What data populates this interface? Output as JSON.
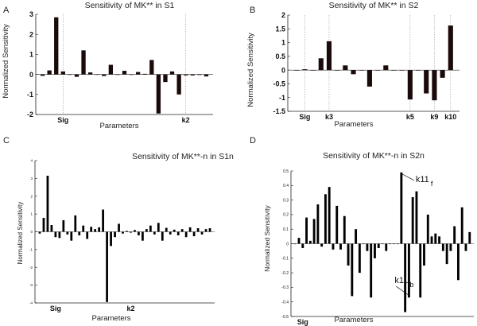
{
  "chart_data": [
    {
      "panel": "A",
      "type": "bar",
      "title": "Sensitivity of MK** in S1",
      "xlabel": "Parameters",
      "ylabel": "Normalized Sensitivity",
      "ylim": [
        -2,
        3
      ],
      "yticks": [
        "-2",
        "-1",
        "0",
        "1",
        "2",
        "3"
      ],
      "param_labels": [
        {
          "index": 3,
          "text": "Sig"
        },
        {
          "index": 21,
          "text": "k2"
        }
      ],
      "values": [
        -0.07,
        0.2,
        2.85,
        0.15,
        0.0,
        -0.12,
        1.2,
        0.1,
        0.0,
        -0.08,
        0.48,
        0.0,
        0.18,
        0.0,
        0.12,
        0.03,
        0.72,
        -1.95,
        -0.38,
        0.15,
        -1.0,
        -0.05,
        -0.05,
        -0.03,
        -0.1
      ],
      "value_count_note": "",
      "grid": false
    },
    {
      "panel": "B",
      "type": "bar",
      "title": "Sensitivity of MK** in S2",
      "xlabel": "Parameters",
      "ylabel": "Normalized Sensitivity",
      "ylim": [
        -1.5,
        2
      ],
      "yticks": [
        "-1.5",
        "-1",
        "-0.5",
        "0",
        "0.5",
        "1",
        "1.5",
        "2"
      ],
      "param_labels": [
        {
          "index": 1,
          "text": "Sig"
        },
        {
          "index": 4,
          "text": "k3"
        },
        {
          "index": 14,
          "text": "k5"
        },
        {
          "index": 17,
          "text": "k9"
        },
        {
          "index": 19,
          "text": "k10"
        }
      ],
      "values": [
        0.0,
        0.03,
        0.0,
        0.43,
        1.05,
        0.0,
        0.17,
        -0.15,
        0.0,
        -0.6,
        0.0,
        0.17,
        0.0,
        0.0,
        -1.07,
        0.0,
        -0.85,
        -1.1,
        -0.28,
        1.62
      ],
      "grid": false
    },
    {
      "panel": "C",
      "type": "bar",
      "title": "Sensitivity of MK**-n in S1n",
      "xlabel": "Parameters",
      "ylabel": "Normalized Sensitivity",
      "ylim": [
        -4,
        4
      ],
      "yticks": [
        "-4",
        "-3",
        "-2",
        "-1",
        "0",
        "1",
        "2",
        "3",
        "4"
      ],
      "param_labels": [
        {
          "index": 4,
          "text": "Sig"
        },
        {
          "index": 23,
          "text": "k2"
        }
      ],
      "values": [
        -0.1,
        0.78,
        3.15,
        0.38,
        -0.3,
        -0.35,
        0.65,
        -0.15,
        -0.5,
        0.92,
        -0.2,
        0.35,
        -0.4,
        0.28,
        0.15,
        0.25,
        1.25,
        -3.95,
        -0.8,
        -0.3,
        0.45,
        -0.1,
        0.05,
        -0.05,
        0.1,
        -0.2,
        -0.5,
        0.15,
        0.35,
        -0.15,
        0.5,
        -0.5,
        0.22,
        -0.15,
        0.12,
        -0.2,
        0.15,
        -0.3,
        0.25,
        -0.25,
        0.2,
        -0.15,
        0.15,
        0.2
      ],
      "grid": false
    },
    {
      "panel": "D",
      "type": "bar",
      "title": "Sensitivity of MK**-n in S2n",
      "xlabel": "Parameters",
      "ylabel": "Normalized Sensitivity",
      "ylim": [
        -0.5,
        0.5
      ],
      "yticks": [
        "-0.5",
        "-0.4",
        "-0.3",
        "-0.2",
        "-0.1",
        "0",
        "0.1",
        "0.2",
        "0.3",
        "0.4",
        "0.5"
      ],
      "param_labels": [
        {
          "index": 2,
          "text": "Sig"
        }
      ],
      "annotations": [
        {
          "text": "k11",
          "sub": "f",
          "target_index": 28
        },
        {
          "text": "k11",
          "sub": "b",
          "target_index": 30
        }
      ],
      "values": [
        0.0,
        0.04,
        -0.03,
        0.18,
        0.02,
        0.17,
        0.27,
        -0.02,
        0.34,
        0.39,
        -0.04,
        0.26,
        -0.04,
        0.19,
        -0.15,
        -0.36,
        0.1,
        -0.2,
        0.0,
        -0.05,
        -0.37,
        -0.1,
        -0.03,
        0.0,
        -0.05,
        0.0,
        0.0,
        0.0,
        0.49,
        -0.47,
        -0.37,
        0.32,
        0.36,
        -0.37,
        -0.15,
        0.2,
        0.05,
        0.07,
        0.05,
        -0.05,
        -0.14,
        -0.05,
        0.12,
        -0.25,
        0.25,
        -0.05,
        0.08
      ],
      "grid": false
    }
  ],
  "panels": {
    "A": {
      "letter": "A",
      "title": "Sensitivity of MK** in S1",
      "ylabel": "Normalized Sensitivity",
      "xlabel": "Parameters"
    },
    "B": {
      "letter": "B",
      "title": "Sensitivity of MK** in S2",
      "ylabel": "Normalized Sensitivity",
      "xlabel": "Parameters"
    },
    "C": {
      "letter": "C",
      "title": "Sensitivity of MK**-n in S1n",
      "ylabel": "Normalized Sensitivity",
      "xlabel": "Parameters"
    },
    "D": {
      "letter": "D",
      "title": "Sensitivity of MK**-n in S2n",
      "ylabel": "Normalized Sensitivity",
      "xlabel": "Parameters"
    }
  }
}
